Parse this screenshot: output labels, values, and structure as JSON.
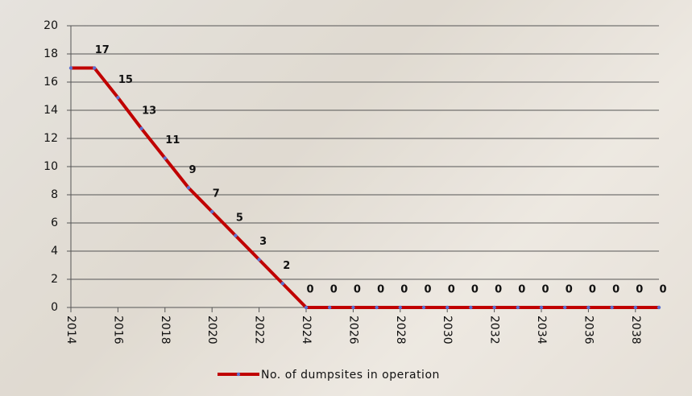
{
  "chart_data": {
    "type": "line",
    "x": [
      2014,
      2015,
      2016,
      2017,
      2018,
      2019,
      2020,
      2021,
      2022,
      2023,
      2024,
      2025,
      2026,
      2027,
      2028,
      2029,
      2030,
      2031,
      2032,
      2033,
      2034,
      2035,
      2036,
      2037,
      2038,
      2039
    ],
    "series": [
      {
        "name": "No. of dumpsites in operation",
        "color": "#c00000",
        "marker_color": "#5b6fd0",
        "values": [
          17,
          17,
          14.9,
          12.7,
          10.6,
          8.5,
          6.8,
          5.1,
          3.4,
          1.7,
          0,
          0,
          0,
          0,
          0,
          0,
          0,
          0,
          0,
          0,
          0,
          0,
          0,
          0,
          0,
          0
        ],
        "value_labels": [
          null,
          "17",
          "15",
          "13",
          "11",
          "9",
          "7",
          "5",
          "3",
          "2",
          "0",
          "0",
          "0",
          "0",
          "0",
          "0",
          "0",
          "0",
          "0",
          "0",
          "0",
          "0",
          "0",
          "0",
          "0",
          "0"
        ]
      }
    ],
    "xlim": [
      2014,
      2039
    ],
    "xticks": [
      2014,
      2016,
      2018,
      2020,
      2022,
      2024,
      2026,
      2028,
      2030,
      2032,
      2034,
      2036,
      2038
    ],
    "ylim": [
      0,
      20
    ],
    "yticks": [
      0,
      2,
      4,
      6,
      8,
      10,
      12,
      14,
      16,
      18,
      20
    ],
    "grid": true,
    "legend": "bottom"
  }
}
